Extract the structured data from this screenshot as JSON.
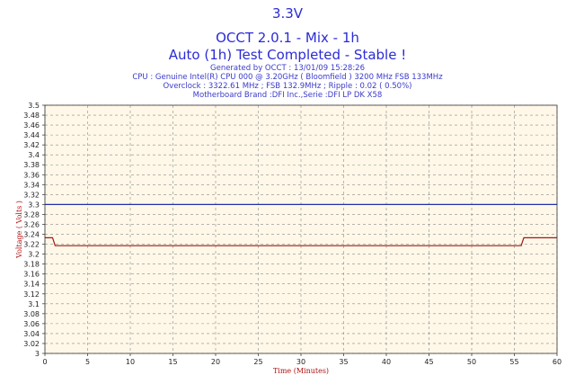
{
  "header": {
    "title": "3.3V",
    "subtitle": "OCCT 2.0.1 - Mix - 1h",
    "status": "Auto (1h) Test Completed - Stable !",
    "info": [
      "Generated by OCCT : 13/01/09 15:28:26",
      "CPU : Genuine Intel(R) CPU 000 @ 3.20GHz ( Bloomfield ) 3200 MHz FSB 133MHz",
      "Overclock : 3322.61 MHz ; FSB 132.9MHz ; Ripple : 0.02 ( 0.50%)",
      "Motherboard Brand :DFI Inc.,Serie :DFI LP DK X58"
    ]
  },
  "colors": {
    "title": "#2b2bd6",
    "plot_background": "#fff8e8",
    "grid": "#8a8a8a",
    "voltage_line": "#a01818",
    "reference_line": "#2030b0",
    "axis_label": "#b01010"
  },
  "chart_data": {
    "type": "line",
    "title": "3.3V",
    "xlabel": "Time (Minutes)",
    "ylabel": "Voltage ( Volts )",
    "xlim": [
      0,
      60
    ],
    "ylim": [
      3.0,
      3.5
    ],
    "x_ticks": [
      0,
      5,
      10,
      15,
      20,
      25,
      30,
      35,
      40,
      45,
      50,
      55,
      60
    ],
    "y_ticks": [
      "3",
      "3.02",
      "3.04",
      "3.06",
      "3.08",
      "3.1",
      "3.12",
      "3.14",
      "3.16",
      "3.18",
      "3.2",
      "3.22",
      "3.24",
      "3.26",
      "3.28",
      "3.3",
      "3.32",
      "3.34",
      "3.36",
      "3.38",
      "3.4",
      "3.42",
      "3.44",
      "3.46",
      "3.48",
      "3.5"
    ],
    "grid": true,
    "reference_line": {
      "y": 3.3
    },
    "series": [
      {
        "x": [
          0,
          0.9,
          1.2,
          55.8,
          56.1,
          60
        ],
        "y": [
          3.233,
          3.233,
          3.217,
          3.217,
          3.233,
          3.233
        ]
      }
    ]
  }
}
